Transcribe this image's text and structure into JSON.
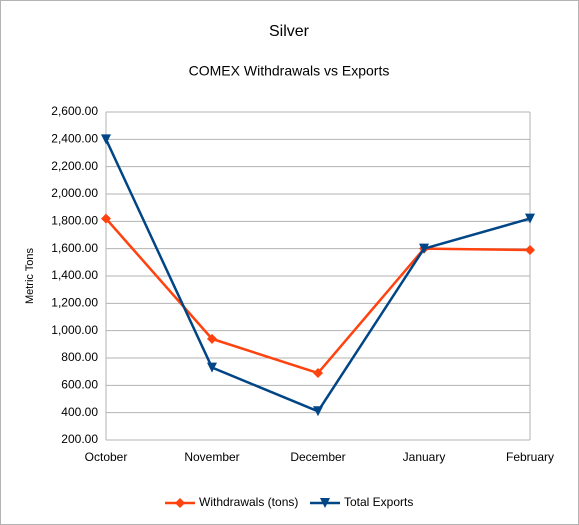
{
  "chart_data": {
    "type": "line",
    "title": "Silver",
    "subtitle": "COMEX Withdrawals vs Exports",
    "y_label": "Metric Tons",
    "categories": [
      "October",
      "November",
      "December",
      "January",
      "February"
    ],
    "series": [
      {
        "name": "Withdrawals (tons)",
        "color": "#ff420e",
        "marker": "diamond",
        "values": [
          1820,
          940,
          690,
          1600,
          1590
        ]
      },
      {
        "name": "Total Exports",
        "color": "#004586",
        "marker": "triangle-down",
        "values": [
          2400,
          730,
          410,
          1600,
          1820
        ]
      }
    ],
    "ylim": [
      200,
      2600
    ],
    "yticks": [
      {
        "value": 200,
        "label": "200.00"
      },
      {
        "value": 400,
        "label": "400.00"
      },
      {
        "value": 600,
        "label": "600.00"
      },
      {
        "value": 800,
        "label": "800.00"
      },
      {
        "value": 1000,
        "label": "1,000.00"
      },
      {
        "value": 1200,
        "label": "1,200.00"
      },
      {
        "value": 1400,
        "label": "1,400.00"
      },
      {
        "value": 1600,
        "label": "1,600.00"
      },
      {
        "value": 1800,
        "label": "1,800.00"
      },
      {
        "value": 2000,
        "label": "2,000.00"
      },
      {
        "value": 2200,
        "label": "2,200.00"
      },
      {
        "value": 2400,
        "label": "2,400.00"
      },
      {
        "value": 2600,
        "label": "2,600.00"
      }
    ],
    "grid": true,
    "legend": "bottom"
  }
}
